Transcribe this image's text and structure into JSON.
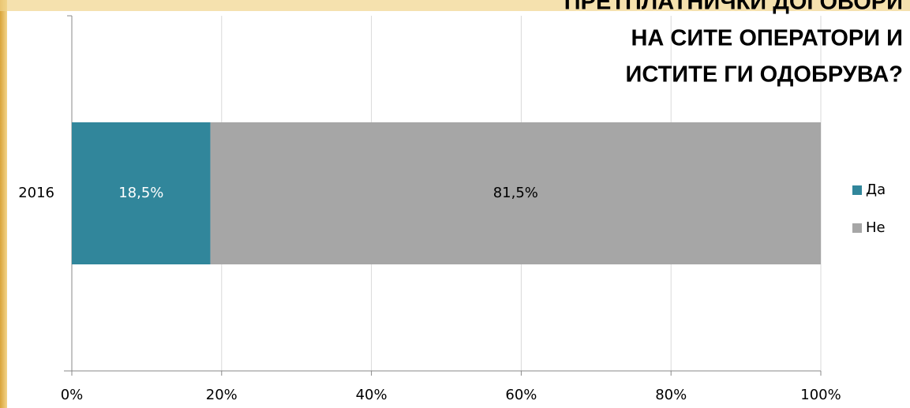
{
  "chart_data": {
    "type": "stacked_barh",
    "title": [
      "ПРЕТПЛАТНИЧКИ ДОГОВОРИ",
      "НА СИТЕ ОПЕРАТОРИ И",
      "ИСТИТЕ ГИ ОДОБРУВА?"
    ],
    "categories": [
      "2016"
    ],
    "series": [
      {
        "name": "Да",
        "color": "#31869b",
        "values": [
          18.5
        ],
        "value_labels": [
          "18,5%"
        ]
      },
      {
        "name": "Не",
        "color": "#a6a6a6",
        "values": [
          81.5
        ],
        "value_labels": [
          "81,5%"
        ]
      }
    ],
    "xlim": [
      0,
      100
    ],
    "xticks": [
      {
        "value": 0,
        "label": "0%"
      },
      {
        "value": 20,
        "label": "20%"
      },
      {
        "value": 40,
        "label": "40%"
      },
      {
        "value": 60,
        "label": "60%"
      },
      {
        "value": 80,
        "label": "80%"
      },
      {
        "value": 100,
        "label": "100%"
      }
    ],
    "grid": true,
    "legend": "right"
  }
}
